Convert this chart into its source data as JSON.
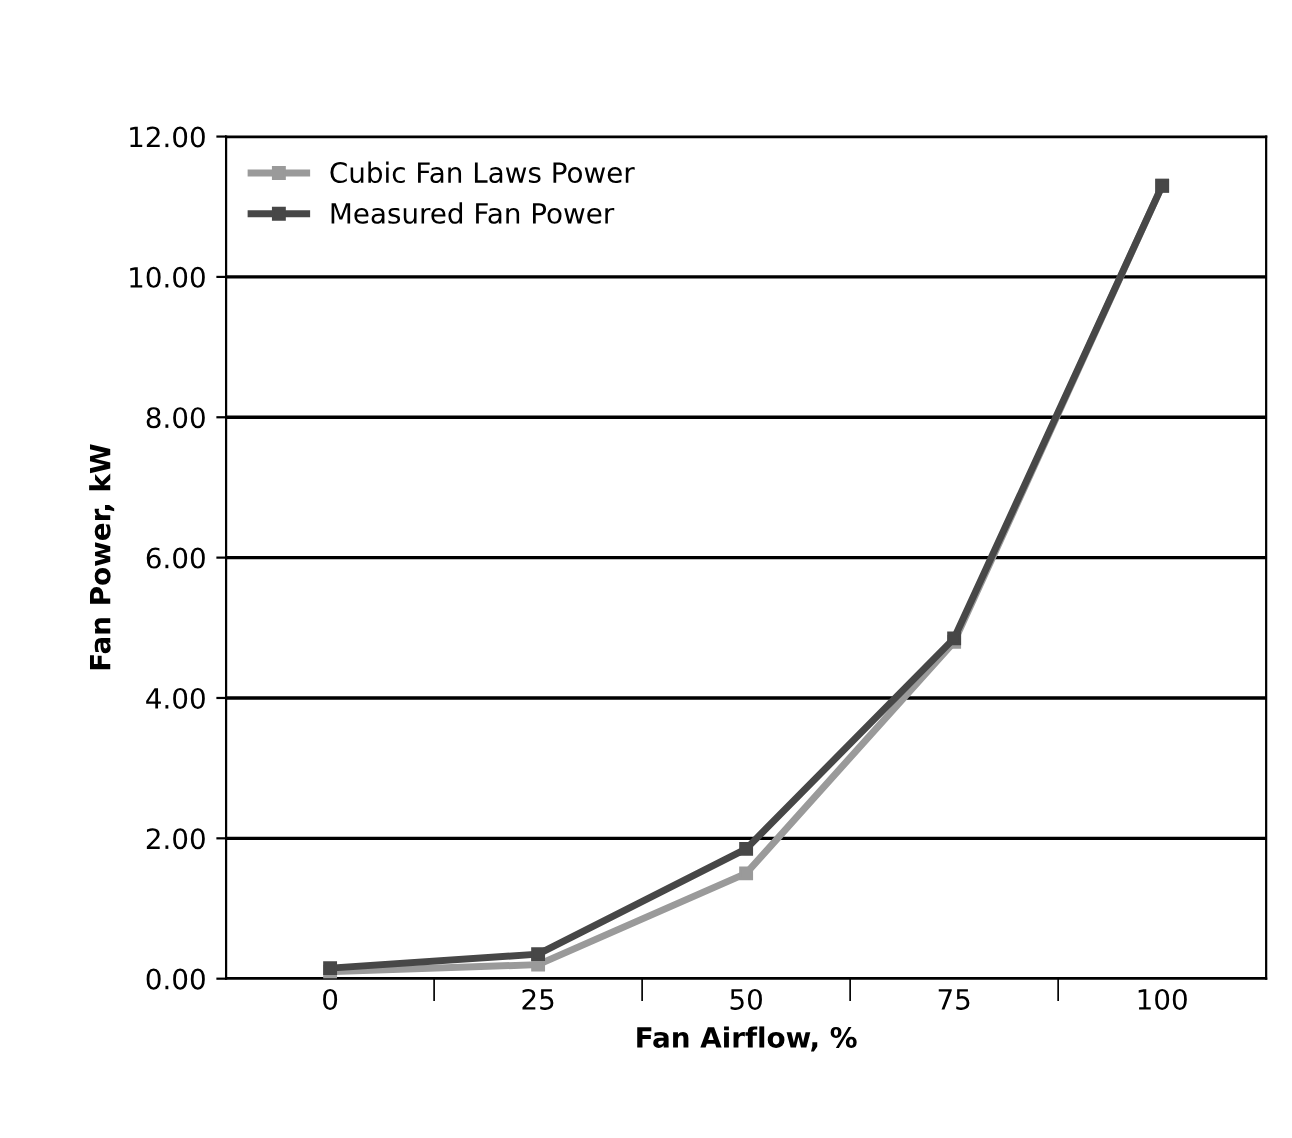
{
  "chart_data": {
    "type": "line",
    "xlabel": "Fan Airflow, %",
    "ylabel": "Fan Power, kW",
    "categories": [
      "0",
      "25",
      "50",
      "75",
      "100"
    ],
    "series": [
      {
        "name": "Cubic Fan Laws Power",
        "color": "#9a9a9a",
        "values": [
          0.1,
          0.2,
          1.5,
          4.8,
          11.3
        ]
      },
      {
        "name": "Measured Fan Power",
        "color": "#474747",
        "values": [
          0.15,
          0.35,
          1.85,
          4.85,
          11.3
        ]
      }
    ],
    "ylim": [
      0,
      12
    ],
    "yticks": [
      {
        "value": 0,
        "label": "0.00"
      },
      {
        "value": 2,
        "label": "2.00"
      },
      {
        "value": 4,
        "label": "4.00"
      },
      {
        "value": 6,
        "label": "6.00"
      },
      {
        "value": 8,
        "label": "8.00"
      },
      {
        "value": 10,
        "label": "10.00"
      },
      {
        "value": 12,
        "label": "12.00"
      }
    ],
    "grid": "y",
    "legend": "top left",
    "marker": "square",
    "line_style": "solid"
  }
}
